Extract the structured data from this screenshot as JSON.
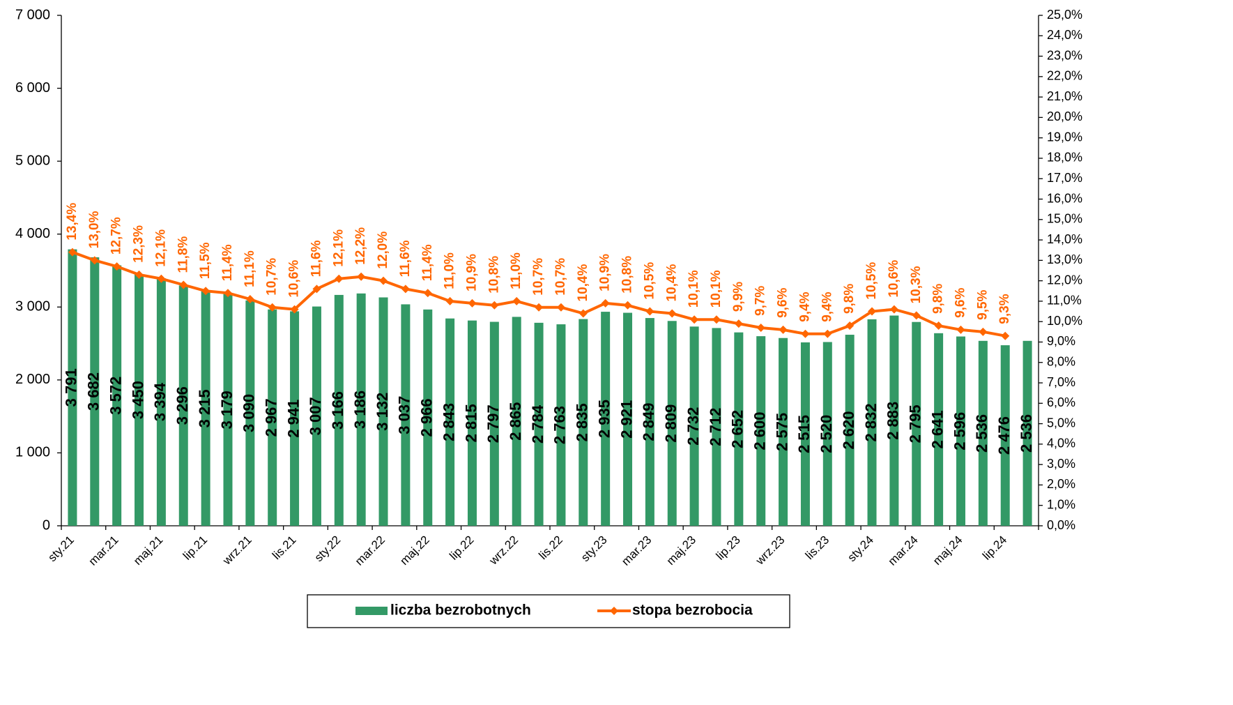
{
  "chart_data": {
    "type": "bar-line",
    "categories": [
      "sty.21",
      null,
      "mar.21",
      null,
      "maj.21",
      null,
      "lip.21",
      null,
      "wrz.21",
      null,
      "lis.21",
      null,
      "sty.22",
      null,
      "mar.22",
      null,
      "maj.22",
      null,
      "lip.22",
      null,
      "wrz.22",
      null,
      "lis.22",
      null,
      "sty.23",
      null,
      "mar.23",
      null,
      "maj.23",
      null,
      "lip.23",
      null,
      "wrz.23",
      null,
      "lis.23",
      null,
      "sty.24",
      null,
      "mar.24",
      null,
      "maj.24",
      null,
      "lip.24",
      null
    ],
    "series": [
      {
        "name": "liczba bezrobotnych",
        "type": "bar",
        "color": "#339966",
        "values": [
          3791,
          3682,
          3572,
          3450,
          3394,
          3296,
          3215,
          3179,
          3090,
          2967,
          2941,
          3007,
          3166,
          3186,
          3132,
          3037,
          2966,
          2843,
          2815,
          2797,
          2865,
          2784,
          2763,
          2835,
          2935,
          2921,
          2849,
          2809,
          2732,
          2712,
          2652,
          2600,
          2575,
          2515,
          2520,
          2620,
          2832,
          2883,
          2795,
          2641,
          2596,
          2536,
          2476,
          2536
        ],
        "value_labels": [
          "3 791",
          "3 682",
          "3 572",
          "3 450",
          "3 394",
          "3 296",
          "3 215",
          "3 179",
          "3 090",
          "2 967",
          "2 941",
          "3 007",
          "3 166",
          "3 186",
          "3 132",
          "3 037",
          "2 966",
          "2 843",
          "2 815",
          "2 797",
          "2 865",
          "2 784",
          "2 763",
          "2 835",
          "2 935",
          "2 921",
          "2 849",
          "2 809",
          "2 732",
          "2 712",
          "2 652",
          "2 600",
          "2 575",
          "2 515",
          "2 520",
          "2 620",
          "2 832",
          "2 883",
          "2 795",
          "2 641",
          "2 596",
          "2 536",
          "2 476",
          "2 536"
        ]
      },
      {
        "name": "stopa bezrobocia",
        "type": "line",
        "axis": "y2",
        "color": "#ff6600",
        "values": [
          13.4,
          13.0,
          12.7,
          12.3,
          12.1,
          11.8,
          11.5,
          11.4,
          11.1,
          10.7,
          10.6,
          11.6,
          12.1,
          12.2,
          12.0,
          11.6,
          11.4,
          11.0,
          10.9,
          10.8,
          11.0,
          10.7,
          10.7,
          10.4,
          10.9,
          10.8,
          10.5,
          10.4,
          10.1,
          10.1,
          9.9,
          9.7,
          9.6,
          9.4,
          9.4,
          9.8,
          10.5,
          10.6,
          10.3,
          9.8,
          9.6,
          9.5,
          9.3,
          null
        ],
        "value_labels": [
          "13,4%",
          "13,0%",
          "12,7%",
          "12,3%",
          "12,1%",
          "11,8%",
          "11,5%",
          "11,4%",
          "11,1%",
          "10,7%",
          "10,6%",
          "11,6%",
          "12,1%",
          "12,2%",
          "12,0%",
          "11,6%",
          "11,4%",
          "11,0%",
          "10,9%",
          "10,8%",
          "11,0%",
          "10,7%",
          "10,7%",
          "10,4%",
          "10,9%",
          "10,8%",
          "10,5%",
          "10,4%",
          "10,1%",
          "10,1%",
          "9,9%",
          "9,7%",
          "9,6%",
          "9,4%",
          "9,4%",
          "9,8%",
          "10,5%",
          "10,6%",
          "10,3%",
          "9,8%",
          "9,6%",
          "9,5%",
          "9,3%",
          null
        ]
      }
    ],
    "ylim": [
      0,
      7000
    ],
    "yticks": [
      0,
      {
        "value": 1000,
        "label": "1 000"
      },
      {
        "value": 2000,
        "label": "2 000"
      },
      {
        "value": 3000,
        "label": "3 000"
      },
      {
        "value": 4000,
        "label": "4 000"
      },
      {
        "value": 5000,
        "label": "5 000"
      },
      {
        "value": 6000,
        "label": "6 000"
      },
      {
        "value": 7000,
        "label": "7 000"
      }
    ],
    "y2lim": [
      0,
      25
    ],
    "y2ticks": [
      {
        "value": 0,
        "label": "0,0%"
      },
      {
        "value": 1,
        "label": "1,0%"
      },
      {
        "value": 2,
        "label": "2,0%"
      },
      {
        "value": 3,
        "label": "3,0%"
      },
      {
        "value": 4,
        "label": "4,0%"
      },
      {
        "value": 5,
        "label": "5,0%"
      },
      {
        "value": 6,
        "label": "6,0%"
      },
      {
        "value": 7,
        "label": "7,0%"
      },
      {
        "value": 8,
        "label": "8,0%"
      },
      {
        "value": 9,
        "label": "9,0%"
      },
      {
        "value": 10,
        "label": "10,0%"
      },
      {
        "value": 11,
        "label": "11,0%"
      },
      {
        "value": 12,
        "label": "12,0%"
      },
      {
        "value": 13,
        "label": "13,0%"
      },
      {
        "value": 14,
        "label": "14,0%"
      },
      {
        "value": 15,
        "label": "15,0%"
      },
      {
        "value": 16,
        "label": "16,0%"
      },
      {
        "value": 17,
        "label": "17,0%"
      },
      {
        "value": 18,
        "label": "18,0%"
      },
      {
        "value": 19,
        "label": "19,0%"
      },
      {
        "value": 20,
        "label": "20,0%"
      },
      {
        "value": 21,
        "label": "21,0%"
      },
      {
        "value": 22,
        "label": "22,0%"
      },
      {
        "value": 23,
        "label": "23,0%"
      },
      {
        "value": 24,
        "label": "24,0%"
      },
      {
        "value": 25,
        "label": "25,0%"
      }
    ],
    "legend": "bottom"
  }
}
